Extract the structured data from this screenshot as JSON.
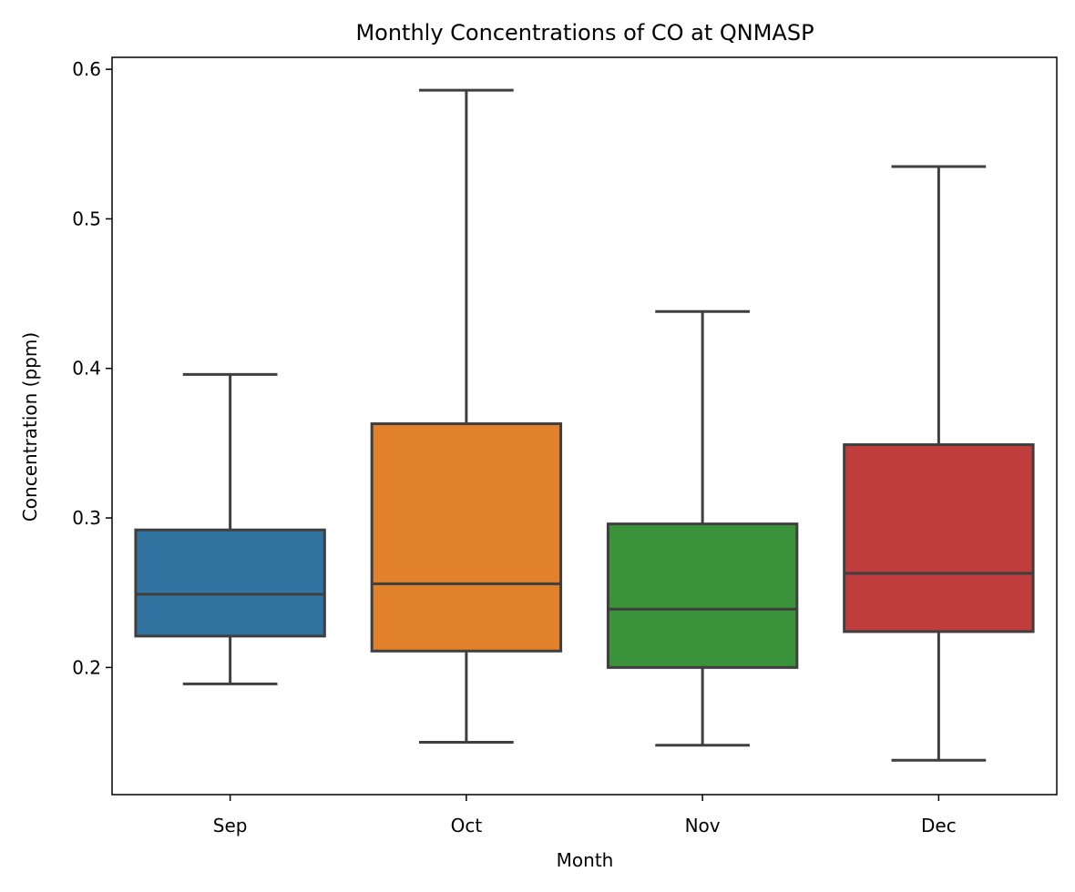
{
  "chart_data": {
    "type": "box",
    "title": "Monthly Concentrations of CO at QNMASP",
    "xlabel": "Month",
    "ylabel": "Concentration (ppm)",
    "ylim": [
      0.115,
      0.608
    ],
    "yticks": [
      0.2,
      0.3,
      0.4,
      0.5,
      0.6
    ],
    "ytick_labels": [
      "0.2",
      "0.3",
      "0.4",
      "0.5",
      "0.6"
    ],
    "grid": false,
    "categories": [
      "Sep",
      "Oct",
      "Nov",
      "Dec"
    ],
    "boxes": [
      {
        "category": "Sep",
        "whisker_low": 0.189,
        "q1": 0.221,
        "median": 0.249,
        "q3": 0.292,
        "whisker_high": 0.396,
        "color": "#3274a1"
      },
      {
        "category": "Oct",
        "whisker_low": 0.15,
        "q1": 0.211,
        "median": 0.256,
        "q3": 0.363,
        "whisker_high": 0.586,
        "color": "#e1812c"
      },
      {
        "category": "Nov",
        "whisker_low": 0.148,
        "q1": 0.2,
        "median": 0.239,
        "q3": 0.296,
        "whisker_high": 0.438,
        "color": "#3a923a"
      },
      {
        "category": "Dec",
        "whisker_low": 0.138,
        "q1": 0.224,
        "median": 0.263,
        "q3": 0.349,
        "whisker_high": 0.535,
        "color": "#c03d3e"
      }
    ],
    "line_color": "#3f3f3f"
  }
}
